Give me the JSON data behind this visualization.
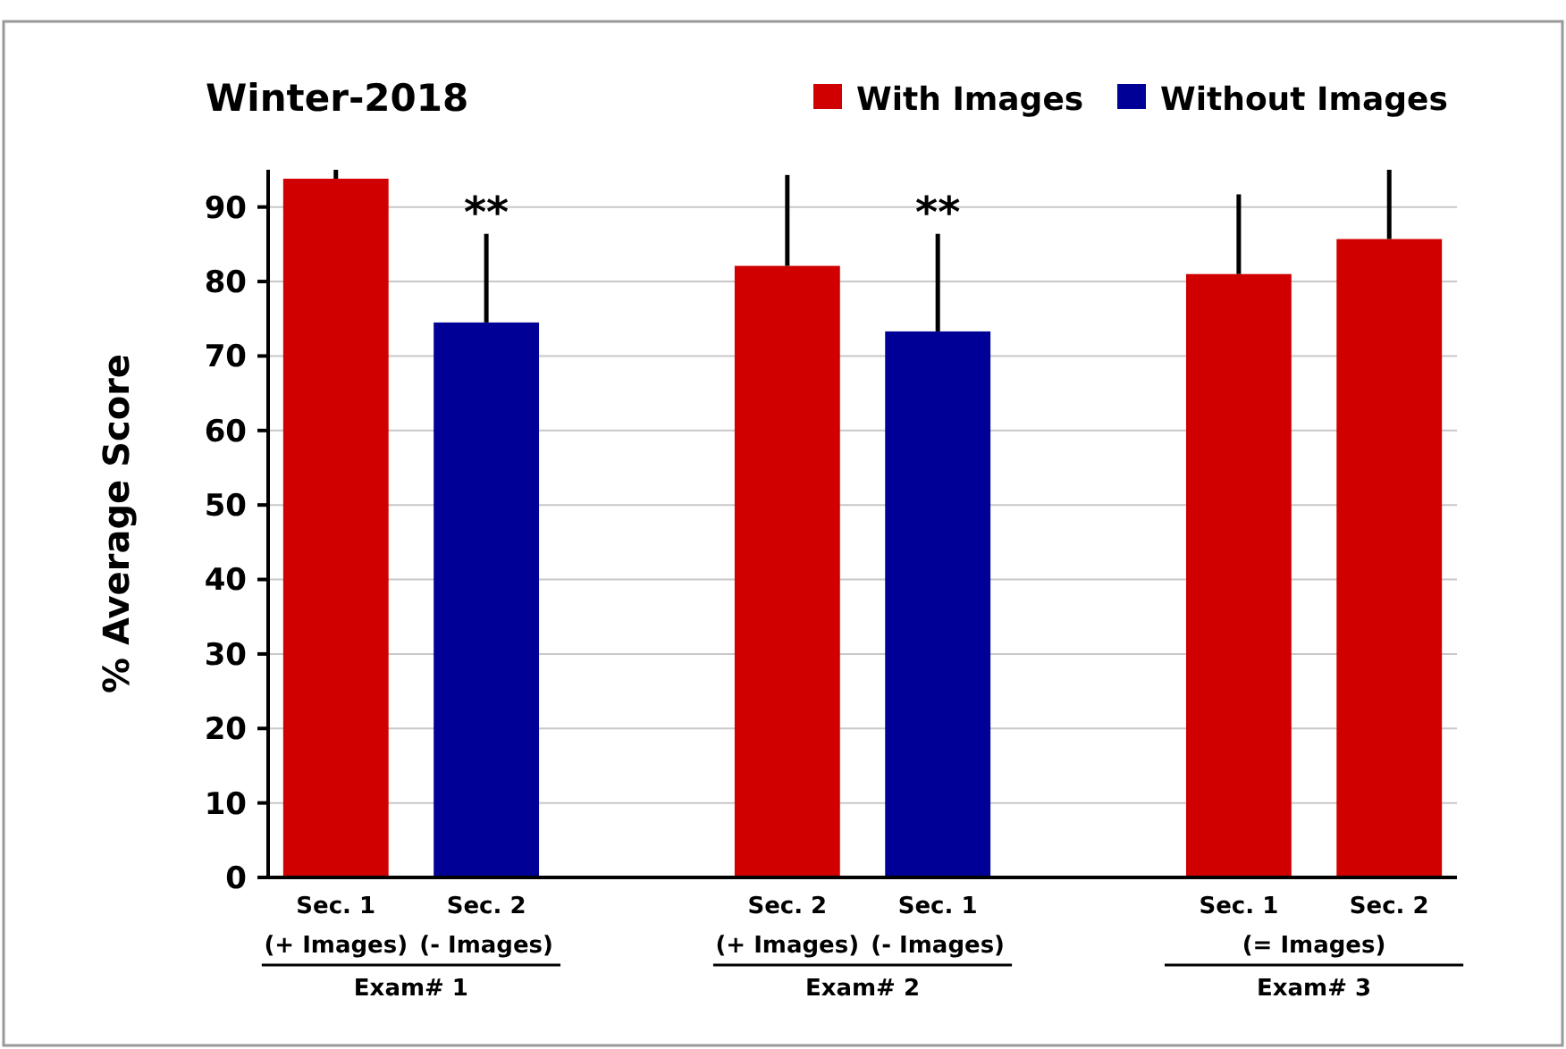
{
  "chart_data": {
    "type": "bar",
    "title": "Winter-2018",
    "ylabel": "% Average Score",
    "categories": [
      "Sec. 1\n(+ Images)",
      "Sec. 2\n(- Images)",
      null,
      "Sec. 2\n(+ Images)",
      "Sec. 1\n(- Images)",
      null,
      "Sec. 1",
      "Sec. 2"
    ],
    "series": [
      {
        "name": "With Images",
        "color": "#d00000",
        "values": [
          93.8,
          null,
          null,
          82.1,
          null,
          null,
          81,
          85.7
        ],
        "errors": [
          [
            93.8,
            95
          ],
          null,
          null,
          [
            82.1,
            94.3
          ],
          null,
          null,
          [
            81,
            91.7
          ],
          [
            85.7,
            95
          ]
        ]
      },
      {
        "name": "Without Images",
        "color": "#000096",
        "values": [
          null,
          74.5,
          null,
          null,
          73.3,
          null,
          null,
          null
        ],
        "errors": [
          null,
          [
            74.5,
            86.4
          ],
          null,
          null,
          [
            73.3,
            86.4
          ],
          null,
          null,
          null
        ]
      }
    ],
    "ylim": [
      0,
      95
    ],
    "yticks": [
      0,
      10,
      20,
      30,
      40,
      50,
      60,
      70,
      80,
      90
    ],
    "grid": "y",
    "legend": "top right",
    "annotations": [
      "**",
      "**",
      "Exam# 1",
      "Exam# 2",
      "(= Images)\nExam# 3"
    ]
  }
}
